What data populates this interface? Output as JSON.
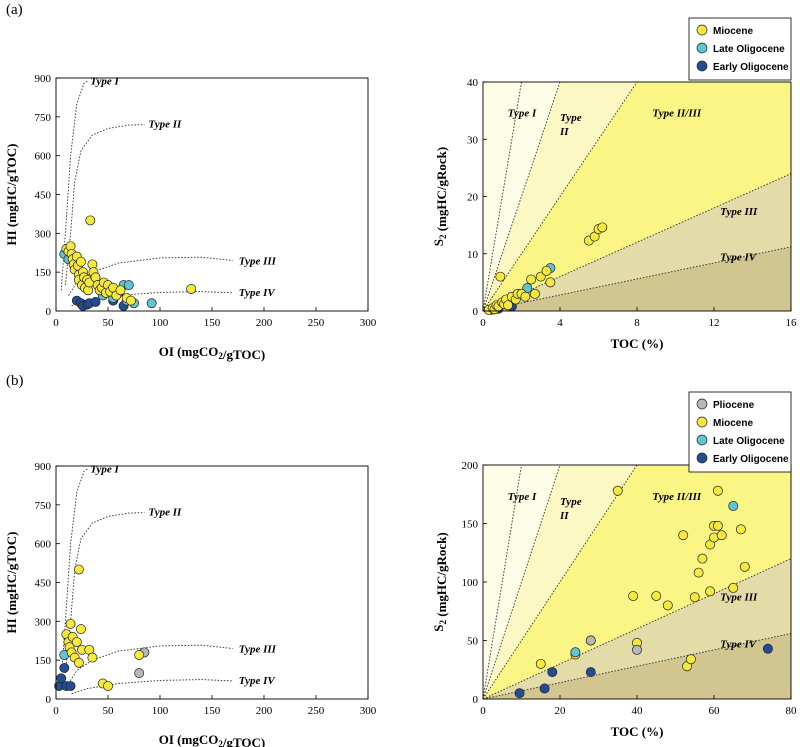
{
  "panels": [
    {
      "label": "(a)"
    },
    {
      "label": "(b)"
    }
  ],
  "colors": {
    "Miocene": "#f7e93c",
    "Late Oligocene": "#5ec5d3",
    "Early Oligocene": "#244c94",
    "Pliocene": "#b7b7b7",
    "zone_I": "#fefde8",
    "zone_II": "#fcf8c4",
    "zone_II_III": "#fbf585",
    "zone_III": "#e4dca8",
    "zone_IV": "#d2c690"
  },
  "chart_data": [
    {
      "id": "a-vk",
      "type": "scatter",
      "xlabel": "OI (mgCO₂/gTOC)",
      "ylabel": "HI (mgHC/gTOC)",
      "xlim": [
        0,
        300
      ],
      "ylim": [
        0,
        900
      ],
      "xticks": [
        0,
        50,
        100,
        150,
        200,
        250,
        300
      ],
      "yticks": [
        0,
        150,
        300,
        450,
        600,
        750,
        900
      ],
      "kerogen_curves": [
        {
          "name": "Type I",
          "points": [
            [
              5,
              80
            ],
            [
              9,
              300
            ],
            [
              14,
              600
            ],
            [
              20,
              800
            ],
            [
              27,
              880
            ],
            [
              31,
              890
            ]
          ]
        },
        {
          "name": "Type II",
          "points": [
            [
              9,
              100
            ],
            [
              14,
              300
            ],
            [
              18,
              500
            ],
            [
              24,
              620
            ],
            [
              35,
              680
            ],
            [
              50,
              705
            ],
            [
              70,
              718
            ],
            [
              85,
              720
            ]
          ]
        },
        {
          "name": "Type III",
          "points": [
            [
              12,
              60
            ],
            [
              20,
              110
            ],
            [
              35,
              150
            ],
            [
              60,
              185
            ],
            [
              100,
              205
            ],
            [
              140,
              208
            ],
            [
              170,
              195
            ]
          ]
        },
        {
          "name": "Type IV",
          "points": [
            [
              15,
              20
            ],
            [
              30,
              40
            ],
            [
              60,
              60
            ],
            [
              100,
              72
            ],
            [
              140,
              75
            ],
            [
              170,
              70
            ]
          ]
        }
      ],
      "series": [
        {
          "name": "Miocene",
          "points": [
            [
              10,
              240
            ],
            [
              12,
              230
            ],
            [
              14,
              250
            ],
            [
              15,
              220
            ],
            [
              16,
              200
            ],
            [
              17,
              180
            ],
            [
              18,
              160
            ],
            [
              20,
              210
            ],
            [
              21,
              175
            ],
            [
              22,
              140
            ],
            [
              22,
              120
            ],
            [
              24,
              190
            ],
            [
              25,
              100
            ],
            [
              26,
              150
            ],
            [
              27,
              130
            ],
            [
              28,
              90
            ],
            [
              30,
              120
            ],
            [
              31,
              80
            ],
            [
              32,
              110
            ],
            [
              33,
              350
            ],
            [
              35,
              180
            ],
            [
              36,
              150
            ],
            [
              38,
              130
            ],
            [
              40,
              100
            ],
            [
              42,
              80
            ],
            [
              44,
              90
            ],
            [
              46,
              110
            ],
            [
              48,
              70
            ],
            [
              50,
              100
            ],
            [
              52,
              75
            ],
            [
              55,
              90
            ],
            [
              58,
              60
            ],
            [
              62,
              80
            ],
            [
              68,
              50
            ],
            [
              72,
              40
            ],
            [
              130,
              85
            ]
          ]
        },
        {
          "name": "Late Oligocene",
          "points": [
            [
              8,
              220
            ],
            [
              12,
              200
            ],
            [
              45,
              60
            ],
            [
              55,
              50
            ],
            [
              60,
              70
            ],
            [
              65,
              100
            ],
            [
              68,
              40
            ],
            [
              70,
              100
            ],
            [
              75,
              30
            ],
            [
              92,
              30
            ]
          ]
        },
        {
          "name": "Early Oligocene",
          "points": [
            [
              20,
              40
            ],
            [
              24,
              30
            ],
            [
              26,
              20
            ],
            [
              30,
              25
            ],
            [
              32,
              30
            ],
            [
              38,
              35
            ],
            [
              55,
              40
            ],
            [
              65,
              20
            ]
          ]
        }
      ]
    },
    {
      "id": "a-s2",
      "type": "scatter",
      "xlabel": "TOC (%)",
      "ylabel": "S₂ (mgHC/gRock)",
      "xlim": [
        0,
        16
      ],
      "ylim": [
        0,
        40
      ],
      "xticks": [
        0,
        4,
        8,
        12,
        16
      ],
      "yticks": [
        0,
        10,
        20,
        30,
        40
      ],
      "zone_boundaries_S2_per_TOC": [
        20,
        10,
        5,
        1.5,
        0.7
      ],
      "zone_labels": [
        "Type I",
        "Type II",
        "Type II/III",
        "Type III",
        "Type IV"
      ],
      "series": [
        {
          "name": "Miocene",
          "points": [
            [
              0.3,
              0.2
            ],
            [
              0.5,
              0.5
            ],
            [
              0.6,
              0.3
            ],
            [
              0.7,
              1
            ],
            [
              0.8,
              0.8
            ],
            [
              0.9,
              6
            ],
            [
              1,
              1.5
            ],
            [
              1.1,
              1.2
            ],
            [
              1.2,
              2
            ],
            [
              1.3,
              1
            ],
            [
              1.5,
              2.5
            ],
            [
              1.7,
              2
            ],
            [
              1.8,
              3
            ],
            [
              2,
              3
            ],
            [
              2.2,
              2.5
            ],
            [
              2.5,
              5.5
            ],
            [
              2.7,
              3
            ],
            [
              3,
              6
            ],
            [
              3.3,
              7
            ],
            [
              3.5,
              5
            ],
            [
              5.5,
              12.3
            ],
            [
              5.8,
              13
            ],
            [
              6,
              14.3
            ],
            [
              6.2,
              14.6
            ]
          ]
        },
        {
          "name": "Late Oligocene",
          "points": [
            [
              2.3,
              4
            ],
            [
              3.5,
              7.5
            ]
          ]
        },
        {
          "name": "Early Oligocene",
          "points": [
            [
              0.4,
              0.2
            ],
            [
              0.6,
              0.3
            ],
            [
              0.8,
              0.4
            ],
            [
              1.5,
              0.8
            ]
          ]
        }
      ]
    },
    {
      "id": "b-vk",
      "type": "scatter",
      "xlabel": "OI (mgCO₂/gTOC)",
      "ylabel": "HI (mgHC/gTOC)",
      "xlim": [
        0,
        300
      ],
      "ylim": [
        0,
        900
      ],
      "xticks": [
        0,
        50,
        100,
        150,
        200,
        250,
        300
      ],
      "yticks": [
        0,
        150,
        300,
        450,
        600,
        750,
        900
      ],
      "kerogen_curves": [
        {
          "name": "Type I",
          "points": [
            [
              5,
              80
            ],
            [
              9,
              300
            ],
            [
              14,
              600
            ],
            [
              20,
              800
            ],
            [
              27,
              880
            ],
            [
              31,
              890
            ]
          ]
        },
        {
          "name": "Type II",
          "points": [
            [
              9,
              100
            ],
            [
              14,
              300
            ],
            [
              18,
              500
            ],
            [
              24,
              620
            ],
            [
              35,
              680
            ],
            [
              50,
              705
            ],
            [
              70,
              718
            ],
            [
              85,
              720
            ]
          ]
        },
        {
          "name": "Type III",
          "points": [
            [
              12,
              60
            ],
            [
              20,
              110
            ],
            [
              35,
              150
            ],
            [
              60,
              185
            ],
            [
              100,
              205
            ],
            [
              140,
              208
            ],
            [
              170,
              195
            ]
          ]
        },
        {
          "name": "Type IV",
          "points": [
            [
              15,
              20
            ],
            [
              30,
              40
            ],
            [
              60,
              60
            ],
            [
              100,
              72
            ],
            [
              140,
              75
            ],
            [
              170,
              70
            ]
          ]
        }
      ],
      "series": [
        {
          "name": "Miocene",
          "points": [
            [
              10,
              250
            ],
            [
              12,
              220
            ],
            [
              13,
              200
            ],
            [
              14,
              290
            ],
            [
              15,
              180
            ],
            [
              16,
              240
            ],
            [
              18,
              160
            ],
            [
              20,
              220
            ],
            [
              22,
              500
            ],
            [
              22,
              140
            ],
            [
              24,
              270
            ],
            [
              25,
              190
            ],
            [
              32,
              190
            ],
            [
              35,
              160
            ],
            [
              45,
              60
            ],
            [
              50,
              50
            ],
            [
              80,
              170
            ]
          ]
        },
        {
          "name": "Late Oligocene",
          "points": [
            [
              8,
              170
            ]
          ]
        },
        {
          "name": "Pliocene",
          "points": [
            [
              80,
              100
            ],
            [
              85,
              180
            ]
          ]
        },
        {
          "name": "Early Oligocene",
          "points": [
            [
              3,
              50
            ],
            [
              5,
              80
            ],
            [
              8,
              120
            ],
            [
              10,
              50
            ],
            [
              14,
              50
            ]
          ]
        }
      ]
    },
    {
      "id": "b-s2",
      "type": "scatter",
      "xlabel": "TOC (%)",
      "ylabel": "S₂ (mgHC/gRock)",
      "xlim": [
        0,
        80
      ],
      "ylim": [
        0,
        200
      ],
      "xticks": [
        0,
        20,
        40,
        60,
        80
      ],
      "yticks": [
        0,
        50,
        100,
        150,
        200
      ],
      "zone_boundaries_S2_per_TOC": [
        20,
        10,
        5,
        1.5,
        0.7
      ],
      "zone_labels": [
        "Type I",
        "Type II",
        "Type II/III",
        "Type III",
        "Type IV"
      ],
      "series": [
        {
          "name": "Miocene",
          "points": [
            [
              15,
              30
            ],
            [
              24,
              38
            ],
            [
              28,
              50
            ],
            [
              35,
              178
            ],
            [
              39,
              88
            ],
            [
              40,
              48
            ],
            [
              45,
              88
            ],
            [
              48,
              80
            ],
            [
              52,
              140
            ],
            [
              53,
              28
            ],
            [
              54,
              34
            ],
            [
              55,
              87
            ],
            [
              56,
              108
            ],
            [
              57,
              120
            ],
            [
              59,
              92
            ],
            [
              59,
              132
            ],
            [
              60,
              138
            ],
            [
              60,
              148
            ],
            [
              61,
              178
            ],
            [
              61,
              148
            ],
            [
              62,
              140
            ],
            [
              65,
              95
            ],
            [
              67,
              145
            ],
            [
              68,
              113
            ]
          ]
        },
        {
          "name": "Late Oligocene",
          "points": [
            [
              24,
              40
            ],
            [
              65,
              165
            ]
          ]
        },
        {
          "name": "Pliocene",
          "points": [
            [
              28,
              50
            ],
            [
              40,
              42
            ]
          ]
        },
        {
          "name": "Early Oligocene",
          "points": [
            [
              9.5,
              5
            ],
            [
              16,
              9
            ],
            [
              18,
              23
            ],
            [
              28,
              23
            ],
            [
              74,
              43
            ]
          ]
        }
      ]
    }
  ],
  "legends": [
    {
      "entries": [
        "Miocene",
        "Late Oligocene",
        "Early Oligocene"
      ]
    },
    {
      "entries": [
        "Pliocene",
        "Miocene",
        "Late Oligocene",
        "Early Oligocene"
      ]
    }
  ]
}
